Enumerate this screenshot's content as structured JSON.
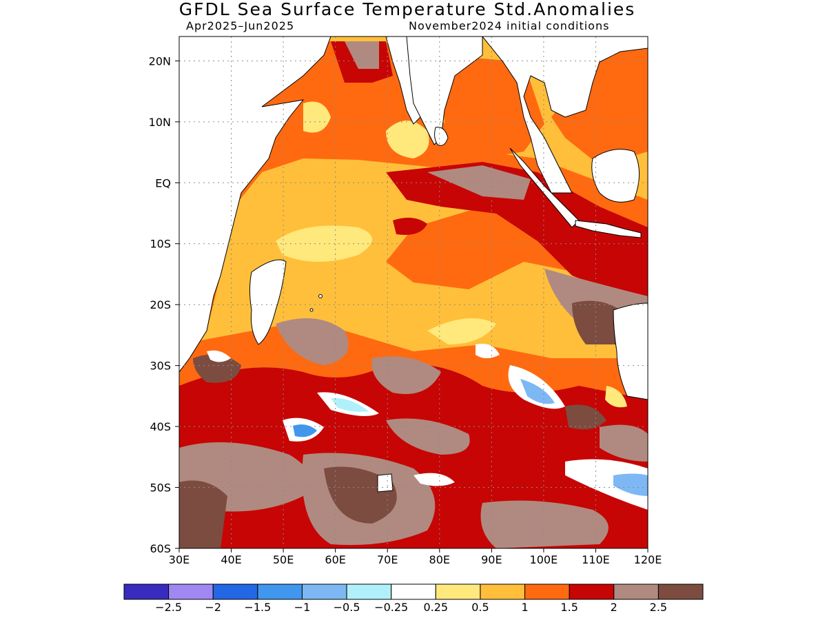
{
  "header": {
    "title": "GFDL Sea Surface Temperature Std.Anomalies",
    "period": "Apr2025–Jun2025",
    "init": "November2024 initial conditions"
  },
  "map": {
    "region": "Indian Ocean",
    "lon_range": [
      30,
      120
    ],
    "lat_range": [
      -60,
      24
    ],
    "lon_ticks": [
      "30E",
      "40E",
      "50E",
      "60E",
      "70E",
      "80E",
      "90E",
      "100E",
      "110E",
      "120E"
    ],
    "lat_ticks": [
      "20N",
      "10N",
      "EQ",
      "10S",
      "20S",
      "30S",
      "40S",
      "50S",
      "60S"
    ],
    "grid": "dotted",
    "land_color": "#ffffff",
    "coastline_color": "#000000"
  },
  "legend": {
    "colors": [
      "#3a2bbf",
      "#a088f3",
      "#2268e6",
      "#4196ee",
      "#7db8f5",
      "#b0f0fa",
      "#ffffff",
      "#ffe87c",
      "#ffbf3a",
      "#ff6a10",
      "#c70505",
      "#b08a80",
      "#7c4c40"
    ],
    "labels": [
      "−2.5",
      "−2",
      "−1.5",
      "−1",
      "−0.5",
      "−0.25",
      "0.25",
      "0.5",
      "1",
      "1.5",
      "2",
      "2.5"
    ]
  }
}
